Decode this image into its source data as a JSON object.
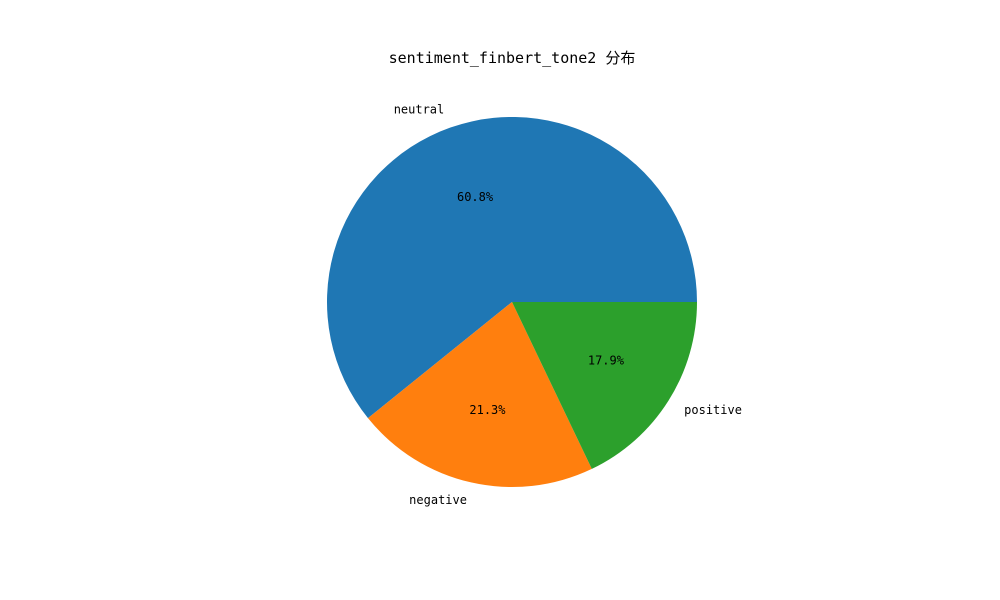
{
  "chart_data": {
    "type": "pie",
    "title": "sentiment_finbert_tone2 分布",
    "slices": [
      {
        "label": "neutral",
        "value": 60.8,
        "pct_label": "60.8%",
        "color": "#1f77b4"
      },
      {
        "label": "negative",
        "value": 21.3,
        "pct_label": "21.3%",
        "color": "#ff7f0e"
      },
      {
        "label": "positive",
        "value": 17.9,
        "pct_label": "17.9%",
        "color": "#2ca02c"
      }
    ],
    "start_angle_deg": 0,
    "direction": "counterclockwise",
    "legend": "none"
  }
}
